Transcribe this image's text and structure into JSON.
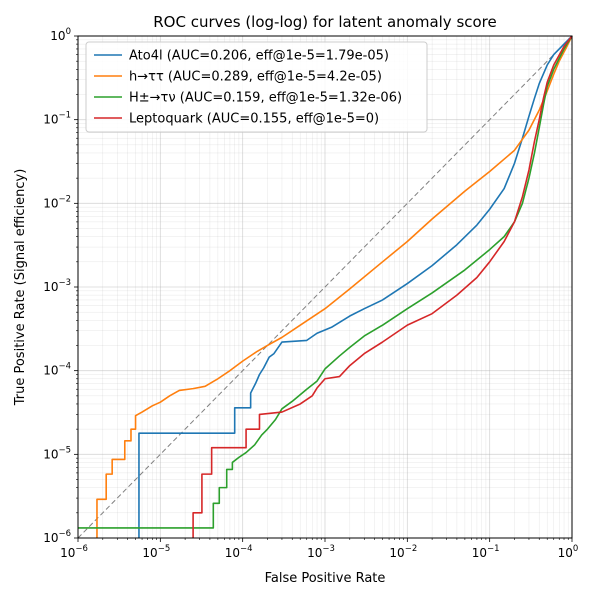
{
  "chart_data": {
    "type": "line",
    "title": "ROC curves (log-log) for latent anomaly score",
    "xlabel": "False Positive Rate",
    "ylabel": "True Positive Rate (Signal efficiency)",
    "xscale": "log",
    "yscale": "log",
    "xlim": [
      1e-06,
      1
    ],
    "ylim": [
      1e-06,
      1
    ],
    "grid": "both major and minor",
    "legend_position": "upper-left",
    "x_ticks": [
      {
        "base": "10",
        "exp": "−6"
      },
      {
        "base": "10",
        "exp": "−5"
      },
      {
        "base": "10",
        "exp": "−4"
      },
      {
        "base": "10",
        "exp": "−3"
      },
      {
        "base": "10",
        "exp": "−2"
      },
      {
        "base": "10",
        "exp": "−1"
      },
      {
        "base": "10",
        "exp": "0"
      }
    ],
    "y_ticks": [
      {
        "base": "10",
        "exp": "−6"
      },
      {
        "base": "10",
        "exp": "−5"
      },
      {
        "base": "10",
        "exp": "−4"
      },
      {
        "base": "10",
        "exp": "−3"
      },
      {
        "base": "10",
        "exp": "−2"
      },
      {
        "base": "10",
        "exp": "−1"
      },
      {
        "base": "10",
        "exp": "0"
      }
    ],
    "reference_line": {
      "style": "dashed",
      "color": "#808080",
      "from": [
        1e-06,
        1e-06
      ],
      "to": [
        1,
        1
      ]
    },
    "series": [
      {
        "name": "Ato4l (AUC=0.206, eff@1e-5=1.79e-05)",
        "color": "#1f77b4",
        "points": [
          [
            5.5e-06,
            1e-06
          ],
          [
            5.5e-06,
            1.79e-05
          ],
          [
            8e-05,
            1.79e-05
          ],
          [
            8e-05,
            3.6e-05
          ],
          [
            0.000125,
            3.6e-05
          ],
          [
            0.000125,
            5.4e-05
          ],
          [
            0.000145,
            7.2e-05
          ],
          [
            0.00016,
            9e-05
          ],
          [
            0.00018,
            0.000108
          ],
          [
            0.00021,
            0.000145
          ],
          [
            0.00024,
            0.00016
          ],
          [
            0.0003,
            0.00022
          ],
          [
            0.0006,
            0.00023
          ],
          [
            0.0008,
            0.00028
          ],
          [
            0.0012,
            0.00033
          ],
          [
            0.002,
            0.00045
          ],
          [
            0.003,
            0.00055
          ],
          [
            0.005,
            0.0007
          ],
          [
            0.01,
            0.0011
          ],
          [
            0.02,
            0.0018
          ],
          [
            0.04,
            0.0032
          ],
          [
            0.07,
            0.0055
          ],
          [
            0.1,
            0.0085
          ],
          [
            0.15,
            0.015
          ],
          [
            0.2,
            0.03
          ],
          [
            0.25,
            0.06
          ],
          [
            0.3,
            0.11
          ],
          [
            0.35,
            0.18
          ],
          [
            0.4,
            0.27
          ],
          [
            0.5,
            0.45
          ],
          [
            0.6,
            0.6
          ],
          [
            0.8,
            0.8
          ],
          [
            1,
            1
          ]
        ]
      },
      {
        "name": "h→ττ (AUC=0.289, eff@1e-5=4.2e-05)",
        "color": "#ff7f0e",
        "points": [
          [
            1.7e-06,
            1e-06
          ],
          [
            1.7e-06,
            2.9e-06
          ],
          [
            2.2e-06,
            2.9e-06
          ],
          [
            2.2e-06,
            5.8e-06
          ],
          [
            2.6e-06,
            5.8e-06
          ],
          [
            2.6e-06,
            8.7e-06
          ],
          [
            3.7e-06,
            8.7e-06
          ],
          [
            3.7e-06,
            1.45e-05
          ],
          [
            4.4e-06,
            1.45e-05
          ],
          [
            4.4e-06,
            2e-05
          ],
          [
            5e-06,
            2e-05
          ],
          [
            5e-06,
            2.9e-05
          ],
          [
            6e-06,
            3.2e-05
          ],
          [
            8e-06,
            3.8e-05
          ],
          [
            1e-05,
            4.2e-05
          ],
          [
            1.3e-05,
            5e-05
          ],
          [
            1.7e-05,
            5.8e-05
          ],
          [
            2.5e-05,
            6.1e-05
          ],
          [
            3.5e-05,
            6.5e-05
          ],
          [
            5e-05,
            8e-05
          ],
          [
            7e-05,
            0.0001
          ],
          [
            0.0001,
            0.00013
          ],
          [
            0.00015,
            0.00017
          ],
          [
            0.0002,
            0.0002
          ],
          [
            0.0003,
            0.00025
          ],
          [
            0.0005,
            0.00035
          ],
          [
            0.001,
            0.00055
          ],
          [
            0.002,
            0.00095
          ],
          [
            0.005,
            0.002
          ],
          [
            0.01,
            0.0035
          ],
          [
            0.02,
            0.0065
          ],
          [
            0.05,
            0.014
          ],
          [
            0.1,
            0.024
          ],
          [
            0.2,
            0.043
          ],
          [
            0.3,
            0.075
          ],
          [
            0.4,
            0.13
          ],
          [
            0.5,
            0.22
          ],
          [
            0.6,
            0.35
          ],
          [
            0.7,
            0.5
          ],
          [
            0.85,
            0.72
          ],
          [
            1,
            1
          ]
        ]
      },
      {
        "name": "H±→τν (AUC=0.159, eff@1e-5=1.32e-06)",
        "color": "#2ca02c",
        "points": [
          [
            1e-06,
            1.32e-06
          ],
          [
            4.4e-05,
            1.32e-06
          ],
          [
            4.4e-05,
            2.6e-06
          ],
          [
            5.2e-05,
            2.6e-06
          ],
          [
            5.2e-05,
            4e-06
          ],
          [
            6.4e-05,
            4e-06
          ],
          [
            6.4e-05,
            6.6e-06
          ],
          [
            7.5e-05,
            6.6e-06
          ],
          [
            7.5e-05,
            8e-06
          ],
          [
            9e-05,
            9.2e-06
          ],
          [
            0.00011,
            1.05e-05
          ],
          [
            0.00014,
            1.3e-05
          ],
          [
            0.00017,
            1.7e-05
          ],
          [
            0.0002,
            2e-05
          ],
          [
            0.00025,
            2.6e-05
          ],
          [
            0.0003,
            3.5e-05
          ],
          [
            0.0004,
            4.3e-05
          ],
          [
            0.0006,
            6e-05
          ],
          [
            0.0008,
            7.5e-05
          ],
          [
            0.001,
            0.000105
          ],
          [
            0.0015,
            0.00015
          ],
          [
            0.002,
            0.00019
          ],
          [
            0.003,
            0.00026
          ],
          [
            0.005,
            0.00035
          ],
          [
            0.01,
            0.00055
          ],
          [
            0.02,
            0.00085
          ],
          [
            0.05,
            0.0016
          ],
          [
            0.1,
            0.0028
          ],
          [
            0.15,
            0.004
          ],
          [
            0.2,
            0.006
          ],
          [
            0.25,
            0.01
          ],
          [
            0.3,
            0.02
          ],
          [
            0.35,
            0.04
          ],
          [
            0.4,
            0.08
          ],
          [
            0.45,
            0.15
          ],
          [
            0.5,
            0.25
          ],
          [
            0.6,
            0.4
          ],
          [
            0.8,
            0.7
          ],
          [
            1,
            1
          ]
        ]
      },
      {
        "name": "Leptoquark (AUC=0.155, eff@1e-5=0)",
        "color": "#d62728",
        "points": [
          [
            2.5e-05,
            1e-06
          ],
          [
            2.5e-05,
            2e-06
          ],
          [
            3.2e-05,
            2e-06
          ],
          [
            3.2e-05,
            5.8e-06
          ],
          [
            4.2e-05,
            5.8e-06
          ],
          [
            4.2e-05,
            1.2e-05
          ],
          [
            0.00011,
            1.2e-05
          ],
          [
            0.00011,
            2e-05
          ],
          [
            0.00016,
            2e-05
          ],
          [
            0.00016,
            3e-05
          ],
          [
            0.0003,
            3.2e-05
          ],
          [
            0.0005,
            4e-05
          ],
          [
            0.0007,
            5e-05
          ],
          [
            0.0008,
            6.2e-05
          ],
          [
            0.001,
            8e-05
          ],
          [
            0.0015,
            8.5e-05
          ],
          [
            0.002,
            0.000115
          ],
          [
            0.003,
            0.00016
          ],
          [
            0.005,
            0.00022
          ],
          [
            0.01,
            0.00035
          ],
          [
            0.02,
            0.00048
          ],
          [
            0.04,
            0.0008
          ],
          [
            0.07,
            0.0013
          ],
          [
            0.1,
            0.002
          ],
          [
            0.15,
            0.0035
          ],
          [
            0.2,
            0.006
          ],
          [
            0.25,
            0.012
          ],
          [
            0.3,
            0.025
          ],
          [
            0.35,
            0.055
          ],
          [
            0.4,
            0.1
          ],
          [
            0.45,
            0.18
          ],
          [
            0.5,
            0.28
          ],
          [
            0.6,
            0.45
          ],
          [
            0.8,
            0.75
          ],
          [
            1,
            1
          ]
        ]
      }
    ]
  }
}
